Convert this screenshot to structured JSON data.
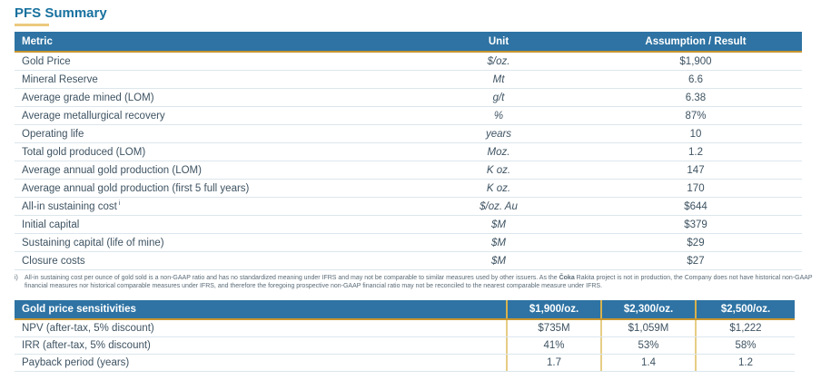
{
  "title": "PFS Summary",
  "colors": {
    "header_blue": "#2E73A3",
    "accent_gold": "#C7952F",
    "title_blue": "#17719F",
    "title_underline_gold": "#EBC97E",
    "text_dark": "#3E5362"
  },
  "pfs_table": {
    "headers": {
      "metric": "Metric",
      "unit": "Unit",
      "result": "Assumption / Result"
    },
    "rows": [
      {
        "metric": "Gold Price",
        "unit": "$/oz.",
        "value": "$1,900"
      },
      {
        "metric": "Mineral Reserve",
        "unit": "Mt",
        "value": "6.6"
      },
      {
        "metric": "Average grade mined (LOM)",
        "unit": "g/t",
        "value": "6.38"
      },
      {
        "metric": "Average metallurgical recovery",
        "unit": "%",
        "value": "87%"
      },
      {
        "metric": "Operating life",
        "unit": "years",
        "value": "10"
      },
      {
        "metric": "Total gold produced (LOM)",
        "unit": "Moz.",
        "value": "1.2"
      },
      {
        "metric": "Average annual gold production (LOM)",
        "unit": "K oz.",
        "value": "147"
      },
      {
        "metric": "Average annual gold production (first 5 full years)",
        "unit": "K oz.",
        "value": "170"
      },
      {
        "metric": "All-in sustaining cost",
        "footnote_ref": "i",
        "unit": "$/oz. Au",
        "value": "$644"
      },
      {
        "metric": "Initial capital",
        "unit": "$M",
        "value": "$379"
      },
      {
        "metric": "Sustaining capital (life of mine)",
        "unit": "$M",
        "value": "$29"
      },
      {
        "metric": "Closure costs",
        "unit": "$M",
        "value": "$27"
      }
    ]
  },
  "footnote": {
    "marker": "i)",
    "text_before_project": "All-in sustaining cost per ounce of gold sold is a non-GAAP ratio and has no standardized meaning under IFRS and may not be comparable to similar measures used by other issuers. As the ",
    "project_bold": "Čoka",
    "text_after_project": " Rakita project is not in production, the Company does not have historical non-GAAP financial measures nor historical comparable measures under IFRS, and therefore the foregoing prospective non-GAAP financial ratio may not be reconciled to the nearest comparable measure under IFRS."
  },
  "sensitivities_table": {
    "header_label": "Gold price sensitivities",
    "scenarios": [
      "$1,900/oz.",
      "$2,300/oz.",
      "$2,500/oz."
    ],
    "rows": [
      {
        "label": "NPV (after-tax, 5% discount)",
        "values": [
          "$735M",
          "$1,059M",
          "$1,222"
        ]
      },
      {
        "label": "IRR (after-tax, 5% discount)",
        "values": [
          "41%",
          "53%",
          "58%"
        ]
      },
      {
        "label": "Payback period (years)",
        "values": [
          "1.7",
          "1.4",
          "1.2"
        ]
      }
    ]
  }
}
